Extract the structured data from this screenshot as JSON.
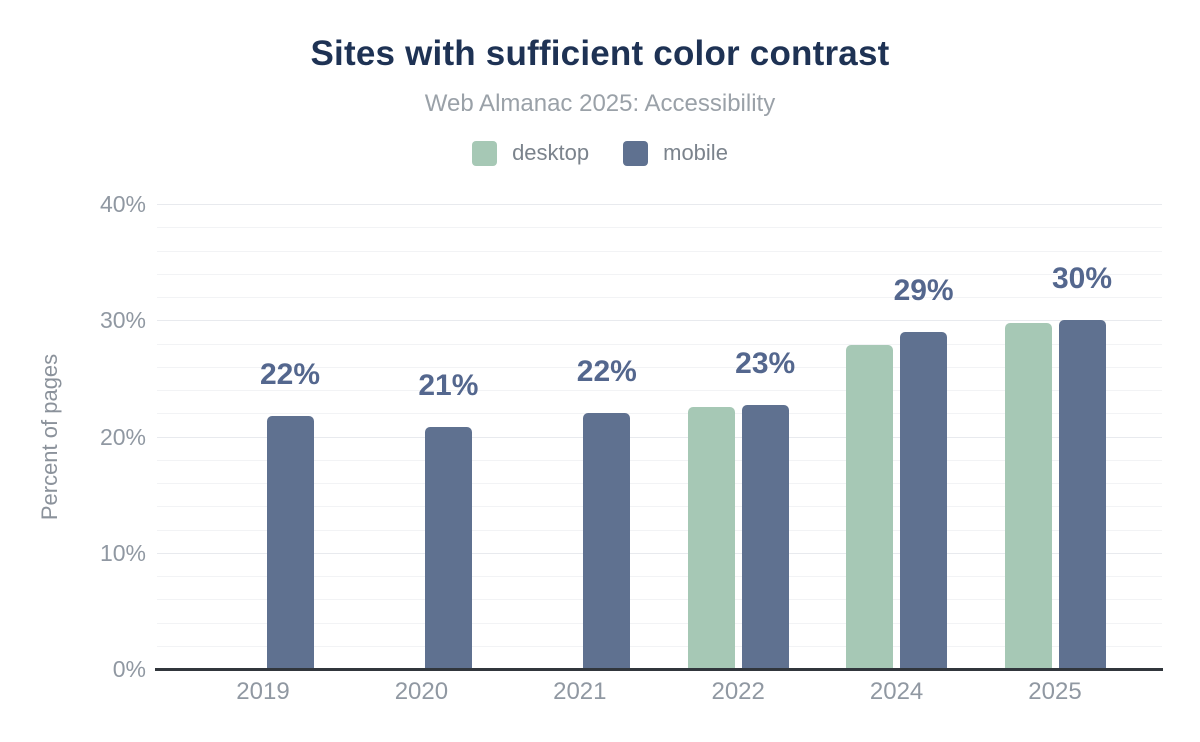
{
  "header": {
    "title": "Sites with sufficient color contrast",
    "subtitle": "Web Almanac 2025: Accessibility"
  },
  "legend": [
    {
      "label": "desktop",
      "color": "#a6c8b5"
    },
    {
      "label": "mobile",
      "color": "#5f7190"
    }
  ],
  "chart_data": {
    "type": "bar",
    "title": "Sites with sufficient color contrast",
    "subtitle": "Web Almanac 2025: Accessibility",
    "categories": [
      "2019",
      "2020",
      "2021",
      "2022",
      "2024",
      "2025"
    ],
    "series": [
      {
        "name": "desktop",
        "color": "#a6c8b5",
        "values": [
          null,
          null,
          null,
          22.5,
          27.9,
          29.8
        ]
      },
      {
        "name": "mobile",
        "color": "#5f7190",
        "values": [
          21.8,
          20.8,
          22.0,
          22.7,
          29.0,
          30.0
        ]
      }
    ],
    "bar_labels": [
      "22%",
      "21%",
      "22%",
      "23%",
      "29%",
      "30%"
    ],
    "xlabel": "",
    "ylabel": "Percent of pages",
    "ylim": [
      0,
      40
    ],
    "yticks": [
      0,
      10,
      20,
      30,
      40
    ],
    "ytick_labels": [
      "0%",
      "10%",
      "20%",
      "30%",
      "40%"
    ],
    "grid": "horizontal, minor every 2%, major every 10%",
    "legend_position": "top"
  },
  "colors": {
    "background": "#ffffff",
    "title_text": "#1e3254",
    "subtitle_text": "#9aa1a8",
    "legend_text": "#7b838c",
    "tick_text": "#9098a2",
    "axis_title_text": "#8b929b",
    "desktop_bar": "#a6c8b5",
    "mobile_bar": "#5f7190",
    "value_label": "#54678e",
    "grid_minor": "#f2f3f5",
    "grid_major": "#e8eaee",
    "axis_line": "#31363c"
  }
}
